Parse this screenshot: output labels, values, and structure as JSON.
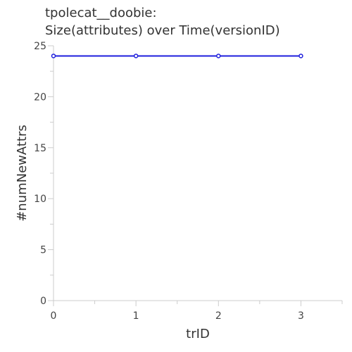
{
  "chart_data": {
    "type": "line",
    "title_line1": "tpolecat__doobie:",
    "title_line2": "Size(attributes) over Time(versionID)",
    "xlabel": "trID",
    "ylabel": "#numNewAttrs",
    "x": [
      0,
      1,
      2,
      3
    ],
    "series": [
      {
        "values": [
          24,
          24,
          24,
          24
        ],
        "color": "#1f1fdd"
      }
    ],
    "xlim": [
      0,
      3.5
    ],
    "ylim": [
      0,
      25
    ],
    "x_ticks": [
      0,
      1,
      2,
      3
    ],
    "y_ticks": [
      0,
      5,
      10,
      15,
      20,
      25
    ],
    "grid": false,
    "legend": "none"
  }
}
